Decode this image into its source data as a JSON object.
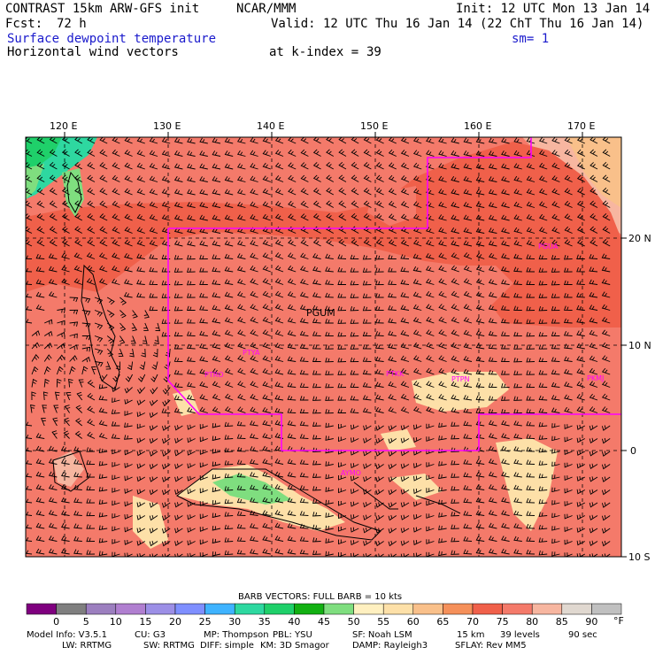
{
  "header": {
    "line1_left": "CONTRAST 15km ARW-GFS init",
    "line1_mid": "NCAR/MMM",
    "line1_right": "Init: 12 UTC Mon 13 Jan 14",
    "fcst_label": "Fcst:",
    "fcst_value": "72 h",
    "valid": "Valid: 12 UTC Thu 16 Jan 14 (22 ChT Thu 16 Jan 14)",
    "field1": "Surface dewpoint temperature",
    "sm": "sm= 1",
    "field2": "Horizontal wind vectors",
    "kindex_label": "at k-index =",
    "kindex_value": "39"
  },
  "map": {
    "lon_labels": [
      "120 E",
      "130 E",
      "140 E",
      "150 E",
      "160 E",
      "170 E"
    ],
    "lat_labels": [
      "20 N",
      "10 N",
      "0",
      "10 S"
    ],
    "stations": [
      "PGUM",
      "PTYA",
      "PTRO",
      "PTKK",
      "PTPN",
      "PKMJ",
      "AYMO",
      "PGUA"
    ],
    "boundary_color": "#ff00ff",
    "station_color": "#ff00ff"
  },
  "legend": {
    "title": "BARB VECTORS:  FULL BARB = 10 kts",
    "unit": "°F",
    "ticks": [
      "0",
      "5",
      "10",
      "15",
      "20",
      "25",
      "30",
      "35",
      "40",
      "45",
      "50",
      "55",
      "60",
      "65",
      "70",
      "75",
      "80",
      "85",
      "90"
    ],
    "colors": [
      "#7f007f",
      "#7f7f7f",
      "#9c7fbf",
      "#b07fd0",
      "#9c8fe6",
      "#7f8fff",
      "#3fb3ff",
      "#2ed8a0",
      "#1fd06a",
      "#12b012",
      "#7fde7f",
      "#fff0c0",
      "#fde0a8",
      "#f9c08a",
      "#f5905a",
      "#f0604a",
      "#f47a6a",
      "#f7b6a0",
      "#e0d8d0",
      "#c0c0c0"
    ]
  },
  "model_info": {
    "line1": [
      "Model Info: V3.5.1",
      "CU: G3",
      "MP: Thompson",
      "PBL: YSU",
      "SF: Noah LSM",
      "15 km",
      "39 levels",
      "90 sec"
    ],
    "line2": [
      "LW: RRTMG",
      "SW: RRTMG",
      "DIFF: simple",
      "KM: 3D Smagor",
      "DAMP: Rayleigh3",
      "SFLAY: Rev MM5"
    ]
  }
}
